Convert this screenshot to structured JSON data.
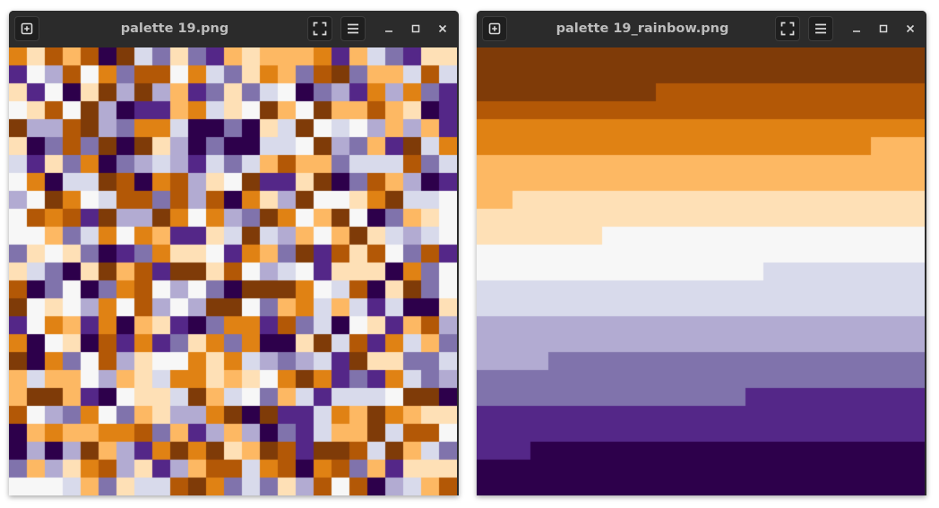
{
  "windows": [
    {
      "title": "palette 19.png",
      "icons": [
        "new-tab-icon",
        "fullscreen-icon",
        "hamburger-menu-icon",
        "minimize-icon",
        "maximize-icon",
        "close-icon"
      ],
      "pattern": "random"
    },
    {
      "title": "palette 19_rainbow.png",
      "icons": [
        "new-tab-icon",
        "fullscreen-icon",
        "hamburger-menu-icon",
        "minimize-icon",
        "maximize-icon",
        "close-icon"
      ],
      "pattern": "rainbow"
    }
  ],
  "palette": [
    "#2d004b",
    "#542788",
    "#8073ac",
    "#b2abd2",
    "#d8daeb",
    "#f7f7f7",
    "#fee0b6",
    "#fdb863",
    "#e08214",
    "#b35806",
    "#7f3b08"
  ],
  "grid_size": 25,
  "theme": {
    "titlebar": "#2b2b2b",
    "title_text": "#bdbdbd",
    "icon": "#d9d9d9"
  }
}
